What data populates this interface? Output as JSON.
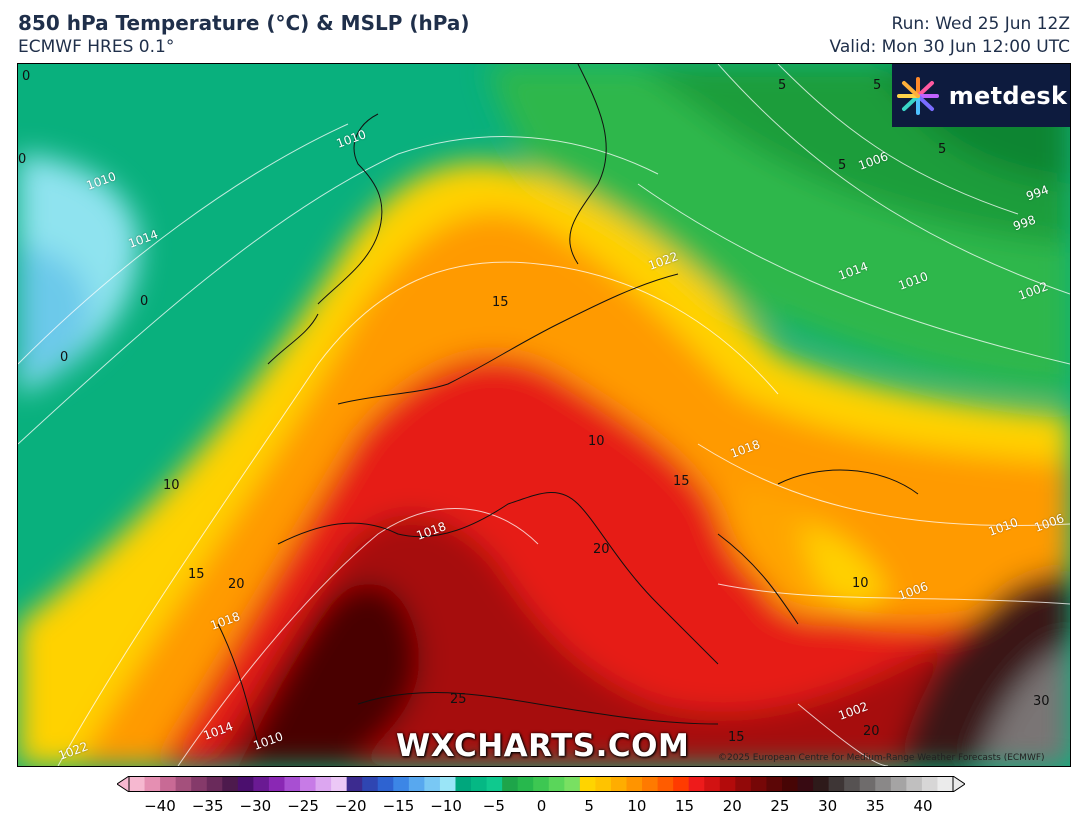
{
  "header": {
    "title": "850 hPa Temperature (°C) & MSLP (hPa)",
    "model": "ECMWF HRES 0.1°",
    "run": "Run: Wed 25 Jun 12Z",
    "valid": "Valid: Mon 30 Jun 12:00 UTC"
  },
  "brand": {
    "name": "metdesk",
    "icon": "starburst-logo-icon"
  },
  "watermark": "WXCHARTS.COM",
  "copyright": "©2025 European Centre for Medium-Range Weather Forecasts (ECMWF)",
  "isobar_labels": [
    {
      "text": "1010",
      "k": "a"
    },
    {
      "text": "1010",
      "k": "b"
    },
    {
      "text": "1014",
      "k": "c"
    },
    {
      "text": "1022",
      "k": "d"
    },
    {
      "text": "1014",
      "k": "e"
    },
    {
      "text": "1010",
      "k": "f"
    },
    {
      "text": "1006",
      "k": "g"
    },
    {
      "text": "994",
      "k": "h"
    },
    {
      "text": "998",
      "k": "i"
    },
    {
      "text": "1002",
      "k": "j"
    },
    {
      "text": "1018",
      "k": "k"
    },
    {
      "text": "1018",
      "k": "l"
    },
    {
      "text": "1014",
      "k": "m"
    },
    {
      "text": "1010",
      "k": "n"
    },
    {
      "text": "1022",
      "k": "o"
    },
    {
      "text": "1010",
      "k": "p"
    },
    {
      "text": "1006",
      "k": "q"
    },
    {
      "text": "1006",
      "k": "r"
    },
    {
      "text": "1002",
      "k": "s"
    },
    {
      "text": "1018",
      "k": "t"
    }
  ],
  "temp_labels": [
    {
      "text": "0",
      "k": "a"
    },
    {
      "text": "0",
      "k": "b"
    },
    {
      "text": "0",
      "k": "c"
    },
    {
      "text": "0",
      "k": "d"
    },
    {
      "text": "5",
      "k": "e"
    },
    {
      "text": "5",
      "k": "f"
    },
    {
      "text": "5",
      "k": "g"
    },
    {
      "text": "5",
      "k": "h"
    },
    {
      "text": "10",
      "k": "i"
    },
    {
      "text": "15",
      "k": "j"
    },
    {
      "text": "20",
      "k": "k"
    },
    {
      "text": "15",
      "k": "l"
    },
    {
      "text": "10",
      "k": "m"
    },
    {
      "text": "15",
      "k": "n"
    },
    {
      "text": "10",
      "k": "o"
    },
    {
      "text": "25",
      "k": "p"
    },
    {
      "text": "15",
      "k": "q"
    },
    {
      "text": "20",
      "k": "r"
    },
    {
      "text": "20",
      "k": "s"
    },
    {
      "text": "30",
      "k": "t"
    }
  ],
  "colorbar": {
    "ticks": [
      "−40",
      "−35",
      "−30",
      "−25",
      "−20",
      "−15",
      "−10",
      "−5",
      "0",
      "5",
      "10",
      "15",
      "20",
      "25",
      "30",
      "35",
      "40"
    ],
    "colors": [
      "#f6b8d0",
      "#e58fb2",
      "#c86a95",
      "#a4507c",
      "#853a6a",
      "#6a2a5b",
      "#4d1a4d",
      "#4b0f6e",
      "#6a1a93",
      "#8a28b4",
      "#a84fd2",
      "#c77be6",
      "#dca6f0",
      "#ecc8f6",
      "#3c2b8f",
      "#2f46b2",
      "#2e63d1",
      "#3c86e6",
      "#58a8ef",
      "#79c8f4",
      "#9ae5f7",
      "#00a77d",
      "#05b884",
      "#0fc98e",
      "#1ea54a",
      "#27b84d",
      "#3dc752",
      "#5ad65a",
      "#79e062",
      "#ffd400",
      "#ffc300",
      "#ffad00",
      "#ff9400",
      "#ff7a00",
      "#ff5c00",
      "#ff3b00",
      "#ee1b1b",
      "#d21212",
      "#b30b0b",
      "#920909",
      "#760707",
      "#5c0606",
      "#470505",
      "#380a12",
      "#2e1a1a",
      "#3e3636",
      "#565252",
      "#6f6c6c",
      "#8a8888",
      "#a5a4a4",
      "#c0bfbf",
      "#d7d6d6",
      "#ebebeb"
    ]
  }
}
